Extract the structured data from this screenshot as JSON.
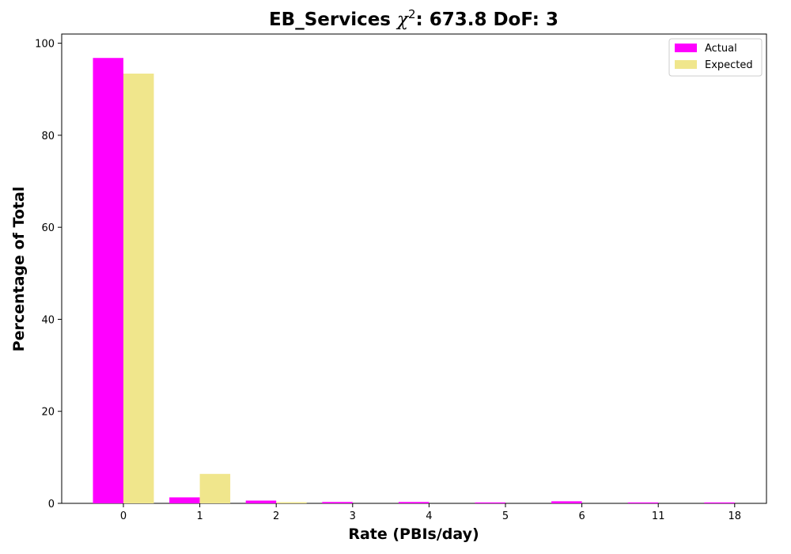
{
  "chart_data": {
    "type": "bar",
    "title_prefix": "EB_Services ",
    "title_chi": "χ",
    "title_sup": "2",
    "title_suffix": ": 673.8 DoF: 3",
    "xlabel": "Rate (PBIs/day)",
    "ylabel": "Percentage of Total",
    "categories": [
      "0",
      "1",
      "2",
      "3",
      "4",
      "5",
      "6",
      "11",
      "18"
    ],
    "series": [
      {
        "name": "Actual",
        "color": "#ff00ff",
        "values": [
          96.8,
          1.3,
          0.6,
          0.3,
          0.3,
          0.2,
          0.45,
          0.2,
          0.2
        ]
      },
      {
        "name": "Expected",
        "color": "#f0e68c",
        "values": [
          93.4,
          6.4,
          0.25,
          0,
          0,
          0,
          0,
          0,
          0
        ]
      }
    ],
    "ylim": [
      0,
      102
    ],
    "yticks": [
      0,
      20,
      40,
      60,
      80,
      100
    ],
    "grid": false,
    "legend_position": "top-right"
  }
}
